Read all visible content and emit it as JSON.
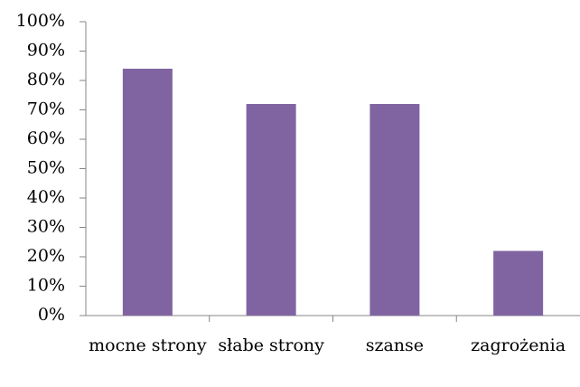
{
  "chart_data": {
    "type": "bar",
    "categories": [
      "mocne strony",
      "słabe strony",
      "szanse",
      "zagrożenia"
    ],
    "values": [
      84,
      72,
      72,
      22
    ],
    "color": "#8064a2",
    "ylim": [
      0,
      100
    ],
    "yticks": [
      {
        "value": 0,
        "label": "0%"
      },
      {
        "value": 10,
        "label": "10%"
      },
      {
        "value": 20,
        "label": "20%"
      },
      {
        "value": 30,
        "label": "30%"
      },
      {
        "value": 40,
        "label": "40%"
      },
      {
        "value": 50,
        "label": "50%"
      },
      {
        "value": 60,
        "label": "60%"
      },
      {
        "value": 70,
        "label": "70%"
      },
      {
        "value": 80,
        "label": "80%"
      },
      {
        "value": 90,
        "label": "90%"
      },
      {
        "value": 100,
        "label": "100%"
      }
    ],
    "grid": false
  }
}
